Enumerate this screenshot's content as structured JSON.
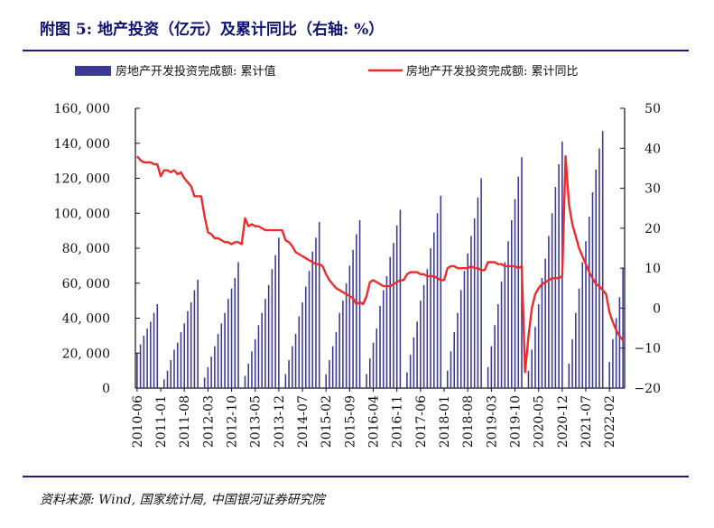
{
  "header": {
    "title": "附图 5: 地产投资（亿元）及累计同比（右轴: %）"
  },
  "footer": {
    "source": "资料来源: Wind, 国家统计局, 中国银河证券研究院"
  },
  "colors": {
    "bars": "#3d3893",
    "line": "#ee2b2b",
    "title": "#0c1270",
    "rule": "#1b1f78"
  },
  "chart_data": {
    "type": "bar+line",
    "legend": {
      "placement": "top",
      "items": [
        "房地产开发投资完成额: 累计值",
        "房地产开发投资完成额: 累计同比"
      ]
    },
    "x_tick_labels": [
      "2010-06",
      "2011-01",
      "2011-08",
      "2012-03",
      "2012-10",
      "2013-05",
      "2013-12",
      "2014-07",
      "2015-02",
      "2015-09",
      "2016-04",
      "2016-11",
      "2017-06",
      "2018-01",
      "2018-08",
      "2019-03",
      "2019-10",
      "2020-05",
      "2020-12",
      "2021-07",
      "2022-02"
    ],
    "y_left": {
      "min": 0,
      "max": 160000,
      "ticks": [
        0,
        20000,
        40000,
        60000,
        80000,
        100000,
        120000,
        140000,
        160000
      ],
      "tick_labels": [
        "0",
        "20, 000",
        "40, 000",
        "60, 000",
        "80, 000",
        "100, 000",
        "120, 000",
        "140, 000",
        "160, 000"
      ]
    },
    "y_right": {
      "min": -20,
      "max": 50,
      "ticks": [
        -20,
        -10,
        0,
        10,
        20,
        30,
        40,
        50
      ],
      "tick_labels": [
        "−20",
        "−10",
        "0",
        "10",
        "20",
        "30",
        "40",
        "50"
      ]
    },
    "series": [
      {
        "name": "房地产开发投资完成额: 累计值",
        "axis": "left",
        "type": "bar",
        "start": "2010-06",
        "values": [
          20000,
          25000,
          30000,
          34000,
          38000,
          43000,
          48000,
          0,
          5000,
          10000,
          16000,
          22000,
          26000,
          32000,
          37000,
          44000,
          49000,
          56000,
          62000,
          0,
          6000,
          12000,
          18000,
          24000,
          31000,
          37000,
          43000,
          51000,
          57000,
          63000,
          72000,
          0,
          7000,
          14000,
          21000,
          28000,
          36000,
          43000,
          51000,
          59000,
          68000,
          76000,
          86000,
          0,
          8000,
          16000,
          24000,
          31000,
          41000,
          49000,
          58000,
          67000,
          78000,
          86000,
          95000,
          0,
          8000,
          16000,
          24000,
          32000,
          43000,
          50000,
          60000,
          70000,
          79000,
          88000,
          96000,
          0,
          8000,
          17000,
          26000,
          34000,
          47000,
          56000,
          64000,
          75000,
          83000,
          93000,
          102000,
          0,
          9000,
          19000,
          29000,
          38000,
          50000,
          59000,
          68000,
          80000,
          89000,
          100000,
          110000,
          0,
          10000,
          21000,
          32000,
          43000,
          56000,
          67000,
          77000,
          87000,
          97000,
          109000,
          120000,
          0,
          12000,
          24000,
          36000,
          48000,
          61000,
          72000,
          84000,
          96000,
          108000,
          121000,
          132000,
          0,
          10000,
          22000,
          35000,
          48000,
          63000,
          74000,
          87000,
          100000,
          115000,
          128000,
          141000,
          0,
          14000,
          28000,
          43000,
          57000,
          72000,
          84000,
          98000,
          112000,
          125000,
          137000,
          147000,
          0,
          15000,
          28000,
          40000,
          52000,
          69000
        ]
      },
      {
        "name": "房地产开发投资完成额: 累计同比",
        "axis": "right",
        "type": "line",
        "start": "2010-06",
        "values": [
          38,
          37,
          36.5,
          36.5,
          36.5,
          36,
          36,
          33,
          34.5,
          34.5,
          34,
          34.5,
          33.5,
          34,
          32.5,
          31.5,
          30.5,
          28,
          28,
          28,
          23,
          19,
          18.5,
          17.5,
          17.5,
          17,
          16.5,
          16.5,
          16,
          16.5,
          16.5,
          16,
          22.5,
          20.5,
          21,
          20.5,
          20.5,
          20,
          19.5,
          19.5,
          19.5,
          19.5,
          19.5,
          19.5,
          17,
          16.5,
          15.5,
          14,
          13.5,
          13,
          12.5,
          12,
          11.5,
          11,
          11,
          10.5,
          8.5,
          7,
          6,
          5,
          4.5,
          4,
          3.5,
          3,
          2.5,
          1,
          1.5,
          1,
          3,
          6.5,
          7,
          6.5,
          6,
          5.5,
          5.5,
          5.5,
          6,
          6.5,
          7,
          7,
          8.5,
          9,
          9,
          9,
          8.5,
          8.5,
          8,
          8,
          8,
          7.5,
          7,
          7,
          10,
          10.5,
          10.5,
          10,
          10,
          10,
          10,
          10.5,
          10,
          10,
          9.5,
          9.5,
          11.5,
          11.5,
          11.5,
          11,
          11,
          10.5,
          10.5,
          10.5,
          10.5,
          10,
          10.5,
          -16,
          -7,
          0,
          3.5,
          5,
          6,
          6.5,
          7,
          7.5,
          7.5,
          7.5,
          8,
          38,
          26,
          21,
          18,
          15,
          13,
          11,
          9,
          7.5,
          6,
          5.5,
          4.5,
          3.5,
          -1,
          -3.5,
          -5.5,
          -7,
          -8
        ]
      }
    ]
  }
}
